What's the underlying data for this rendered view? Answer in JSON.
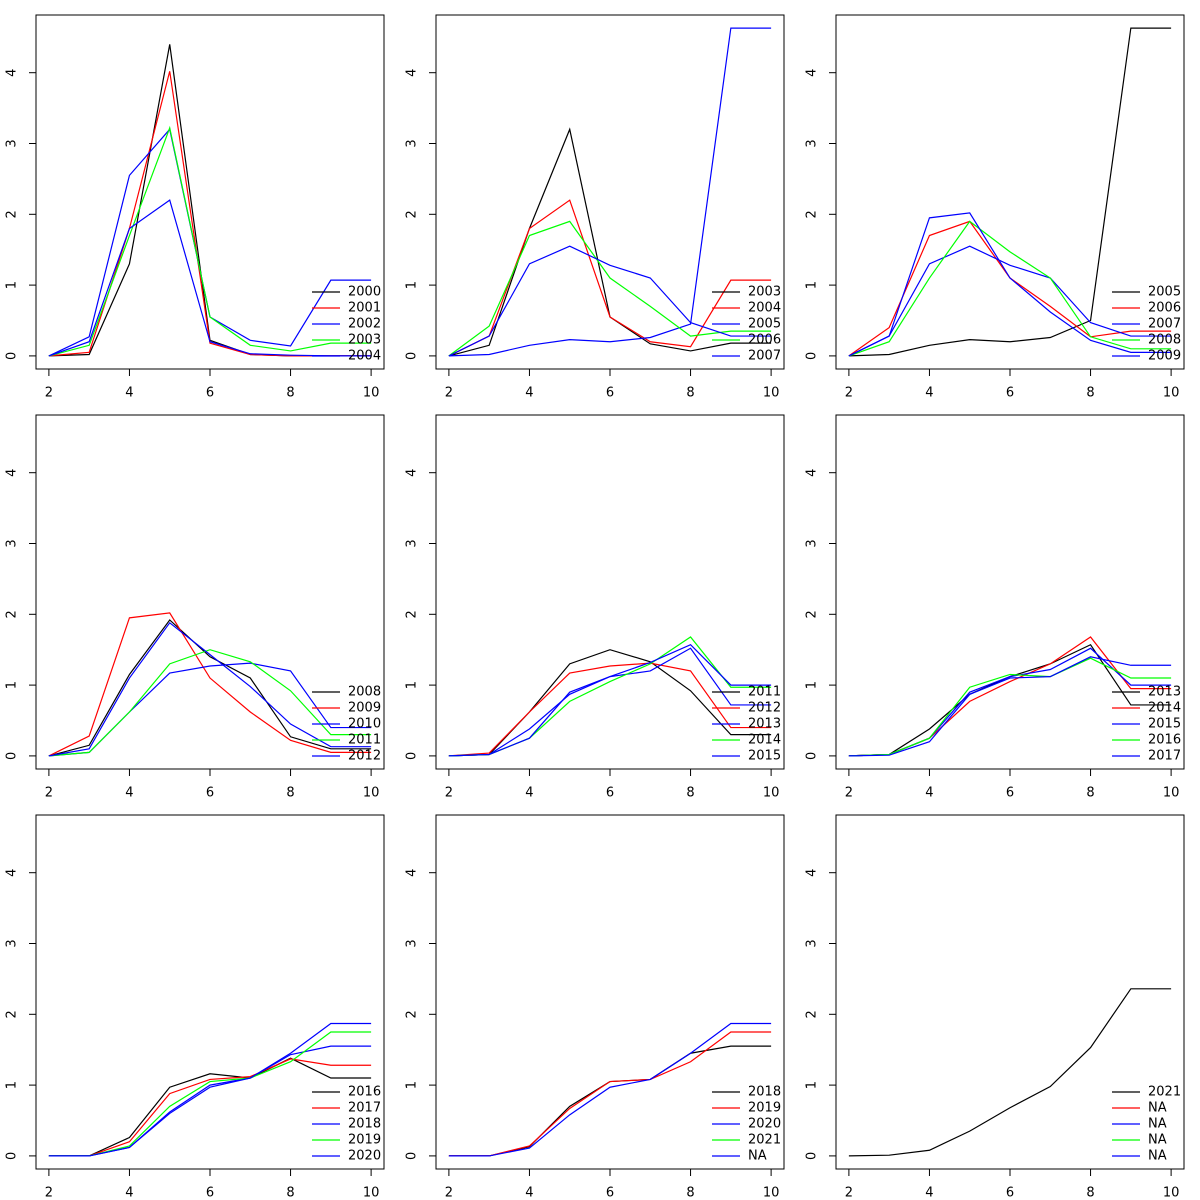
{
  "chart_data": [
    {
      "type": "line",
      "x": [
        2,
        3,
        4,
        5,
        6,
        7,
        8,
        9,
        10
      ],
      "xlim": [
        1.68,
        10.32
      ],
      "xticks": [
        2,
        4,
        6,
        8,
        10
      ],
      "ylim": [
        -0.185,
        4.815
      ],
      "yticks": [
        0,
        1,
        2,
        3,
        4
      ],
      "legend": "bottomright",
      "series": [
        {
          "name": "2000",
          "color": "#000000",
          "values": [
            0,
            0.02,
            1.3,
            4.4,
            0.22,
            0.02,
            0,
            0,
            0
          ]
        },
        {
          "name": "2001",
          "color": "#ff0000",
          "values": [
            0,
            0.05,
            1.8,
            4.02,
            0.18,
            0.02,
            0,
            0,
            0
          ]
        },
        {
          "name": "2002",
          "color": "#0000ff",
          "values": [
            0,
            0.27,
            2.55,
            3.2,
            0.55,
            0.22,
            0.14,
            1.07,
            1.07
          ]
        },
        {
          "name": "2003",
          "color": "#00ff00",
          "values": [
            0,
            0.15,
            1.7,
            3.22,
            0.55,
            0.15,
            0.07,
            0.18,
            0.18
          ]
        },
        {
          "name": "2004",
          "color": "#0000ff",
          "values": [
            0,
            0.2,
            1.8,
            2.2,
            0.2,
            0.03,
            0.01,
            0,
            0
          ]
        }
      ]
    },
    {
      "type": "line",
      "x": [
        2,
        3,
        4,
        5,
        6,
        7,
        8,
        9,
        10
      ],
      "xlim": [
        1.68,
        10.32
      ],
      "xticks": [
        2,
        4,
        6,
        8,
        10
      ],
      "ylim": [
        -0.185,
        4.815
      ],
      "yticks": [
        0,
        1,
        2,
        3,
        4
      ],
      "legend": "bottomright",
      "series": [
        {
          "name": "2003",
          "color": "#000000",
          "values": [
            0,
            0.15,
            1.8,
            3.2,
            0.55,
            0.17,
            0.07,
            0.18,
            0.18
          ]
        },
        {
          "name": "2004",
          "color": "#ff0000",
          "values": [
            0,
            0.28,
            1.8,
            2.2,
            0.55,
            0.2,
            0.13,
            1.07,
            1.07
          ]
        },
        {
          "name": "2005",
          "color": "#0000ff",
          "values": [
            0,
            0.02,
            0.15,
            0.23,
            0.2,
            0.26,
            0.45,
            4.63,
            4.63
          ]
        },
        {
          "name": "2006",
          "color": "#00ff00",
          "values": [
            0,
            0.42,
            1.7,
            1.9,
            1.1,
            0.7,
            0.28,
            0.35,
            0.35
          ]
        },
        {
          "name": "2007",
          "color": "#0000ff",
          "values": [
            0,
            0.28,
            1.3,
            1.55,
            1.28,
            1.1,
            0.47,
            0.28,
            0.28
          ]
        }
      ]
    },
    {
      "type": "line",
      "x": [
        2,
        3,
        4,
        5,
        6,
        7,
        8,
        9,
        10
      ],
      "xlim": [
        1.68,
        10.32
      ],
      "xticks": [
        2,
        4,
        6,
        8,
        10
      ],
      "ylim": [
        -0.185,
        4.815
      ],
      "yticks": [
        0,
        1,
        2,
        3,
        4
      ],
      "legend": "bottomright",
      "series": [
        {
          "name": "2005",
          "color": "#000000",
          "values": [
            0,
            0.02,
            0.15,
            0.23,
            0.2,
            0.26,
            0.5,
            4.63,
            4.63
          ]
        },
        {
          "name": "2006",
          "color": "#ff0000",
          "values": [
            0,
            0.4,
            1.7,
            1.9,
            1.1,
            0.7,
            0.27,
            0.35,
            0.35
          ]
        },
        {
          "name": "2007",
          "color": "#0000ff",
          "values": [
            0,
            0.28,
            1.3,
            1.55,
            1.28,
            1.1,
            0.47,
            0.28,
            0.28
          ]
        },
        {
          "name": "2008",
          "color": "#00ff00",
          "values": [
            0,
            0.2,
            1.1,
            1.9,
            1.47,
            1.1,
            0.27,
            0.1,
            0.1
          ]
        },
        {
          "name": "2009",
          "color": "#0000ff",
          "values": [
            0,
            0.28,
            1.95,
            2.02,
            1.1,
            0.62,
            0.22,
            0.05,
            0.05
          ]
        }
      ]
    },
    {
      "type": "line",
      "x": [
        2,
        3,
        4,
        5,
        6,
        7,
        8,
        9,
        10
      ],
      "xlim": [
        1.68,
        10.32
      ],
      "xticks": [
        2,
        4,
        6,
        8,
        10
      ],
      "ylim": [
        -0.185,
        4.815
      ],
      "yticks": [
        0,
        1,
        2,
        3,
        4
      ],
      "legend": "bottomright",
      "series": [
        {
          "name": "2008",
          "color": "#000000",
          "values": [
            0,
            0.15,
            1.15,
            1.92,
            1.4,
            1.1,
            0.27,
            0.1,
            0.1
          ]
        },
        {
          "name": "2009",
          "color": "#ff0000",
          "values": [
            0,
            0.28,
            1.95,
            2.02,
            1.1,
            0.62,
            0.22,
            0.05,
            0.05
          ]
        },
        {
          "name": "2010",
          "color": "#0000ff",
          "values": [
            0,
            0.05,
            0.62,
            1.17,
            1.27,
            1.31,
            1.2,
            0.4,
            0.4
          ]
        },
        {
          "name": "2011",
          "color": "#00ff00",
          "values": [
            0,
            0.05,
            0.62,
            1.3,
            1.5,
            1.33,
            0.92,
            0.3,
            0.3
          ]
        },
        {
          "name": "2012",
          "color": "#0000ff",
          "values": [
            0,
            0.1,
            1.1,
            1.88,
            1.43,
            0.98,
            0.45,
            0.13,
            0.13
          ]
        }
      ]
    },
    {
      "type": "line",
      "x": [
        2,
        3,
        4,
        5,
        6,
        7,
        8,
        9,
        10
      ],
      "xlim": [
        1.68,
        10.32
      ],
      "xticks": [
        2,
        4,
        6,
        8,
        10
      ],
      "ylim": [
        -0.185,
        4.815
      ],
      "yticks": [
        0,
        1,
        2,
        3,
        4
      ],
      "legend": "bottomright",
      "series": [
        {
          "name": "2011",
          "color": "#000000",
          "values": [
            0,
            0.02,
            0.62,
            1.3,
            1.5,
            1.33,
            0.92,
            0.3,
            0.3
          ]
        },
        {
          "name": "2012",
          "color": "#ff0000",
          "values": [
            0,
            0.04,
            0.62,
            1.17,
            1.27,
            1.31,
            1.2,
            0.4,
            0.4
          ]
        },
        {
          "name": "2013",
          "color": "#0000ff",
          "values": [
            0,
            0.02,
            0.38,
            0.87,
            1.12,
            1.2,
            1.52,
            0.72,
            0.72
          ]
        },
        {
          "name": "2014",
          "color": "#00ff00",
          "values": [
            0,
            0.02,
            0.25,
            0.77,
            1.05,
            1.3,
            1.68,
            0.97,
            0.97
          ]
        },
        {
          "name": "2015",
          "color": "#0000ff",
          "values": [
            0,
            0.02,
            0.25,
            0.9,
            1.12,
            1.32,
            1.57,
            1,
            1
          ]
        }
      ]
    },
    {
      "type": "line",
      "x": [
        2,
        3,
        4,
        5,
        6,
        7,
        8,
        9,
        10
      ],
      "xlim": [
        1.68,
        10.32
      ],
      "xticks": [
        2,
        4,
        6,
        8,
        10
      ],
      "ylim": [
        -0.185,
        4.815
      ],
      "yticks": [
        0,
        1,
        2,
        3,
        4
      ],
      "legend": "bottomright",
      "series": [
        {
          "name": "2013",
          "color": "#000000",
          "values": [
            0,
            0.02,
            0.38,
            0.87,
            1.12,
            1.3,
            1.57,
            0.72,
            0.72
          ]
        },
        {
          "name": "2014",
          "color": "#ff0000",
          "values": [
            0,
            0.02,
            0.25,
            0.77,
            1.05,
            1.3,
            1.68,
            0.95,
            0.95
          ]
        },
        {
          "name": "2015",
          "color": "#0000ff",
          "values": [
            0,
            0.02,
            0.25,
            0.9,
            1.12,
            1.22,
            1.52,
            1,
            1
          ]
        },
        {
          "name": "2016",
          "color": "#00ff00",
          "values": [
            0,
            0.02,
            0.25,
            0.97,
            1.15,
            1.12,
            1.38,
            1.1,
            1.1
          ]
        },
        {
          "name": "2017",
          "color": "#0000ff",
          "values": [
            0,
            0.01,
            0.2,
            0.87,
            1.1,
            1.12,
            1.4,
            1.28,
            1.28
          ]
        }
      ]
    },
    {
      "type": "line",
      "x": [
        2,
        3,
        4,
        5,
        6,
        7,
        8,
        9,
        10
      ],
      "xlim": [
        1.68,
        10.32
      ],
      "xticks": [
        2,
        4,
        6,
        8,
        10
      ],
      "ylim": [
        -0.185,
        4.815
      ],
      "yticks": [
        0,
        1,
        2,
        3,
        4
      ],
      "legend": "bottomright",
      "series": [
        {
          "name": "2016",
          "color": "#000000",
          "values": [
            0,
            0,
            0.26,
            0.97,
            1.16,
            1.1,
            1.38,
            1.1,
            1.1
          ]
        },
        {
          "name": "2017",
          "color": "#ff0000",
          "values": [
            0,
            0,
            0.2,
            0.88,
            1.08,
            1.12,
            1.37,
            1.28,
            1.28
          ]
        },
        {
          "name": "2018",
          "color": "#0000ff",
          "values": [
            0,
            0,
            0.12,
            0.62,
            1,
            1.1,
            1.43,
            1.55,
            1.55
          ]
        },
        {
          "name": "2019",
          "color": "#00ff00",
          "values": [
            0,
            0,
            0.14,
            0.7,
            1.05,
            1.1,
            1.33,
            1.75,
            1.75
          ]
        },
        {
          "name": "2020",
          "color": "#0000ff",
          "values": [
            0,
            0,
            0.12,
            0.6,
            0.97,
            1.1,
            1.45,
            1.87,
            1.87
          ]
        }
      ]
    },
    {
      "type": "line",
      "x": [
        2,
        3,
        4,
        5,
        6,
        7,
        8,
        9,
        10
      ],
      "xlim": [
        1.68,
        10.32
      ],
      "xticks": [
        2,
        4,
        6,
        8,
        10
      ],
      "ylim": [
        -0.185,
        4.815
      ],
      "yticks": [
        0,
        1,
        2,
        3,
        4
      ],
      "legend": "bottomright",
      "series": [
        {
          "name": "2018",
          "color": "#000000",
          "values": [
            0,
            0,
            0.13,
            0.7,
            1.05,
            1.08,
            1.45,
            1.55,
            1.55
          ]
        },
        {
          "name": "2019",
          "color": "#ff0000",
          "values": [
            0,
            0,
            0.14,
            0.67,
            1.05,
            1.08,
            1.33,
            1.75,
            1.75
          ]
        },
        {
          "name": "2020",
          "color": "#0000ff",
          "values": [
            0,
            0,
            0.11,
            0.58,
            0.97,
            1.08,
            1.45,
            1.87,
            1.87
          ]
        },
        {
          "name": "2021",
          "color": "#00ff00",
          "values": [
            null,
            null,
            null,
            null,
            null,
            null,
            null,
            null,
            null
          ]
        },
        {
          "name": "NA",
          "color": "#0000ff",
          "values": [
            null,
            null,
            null,
            null,
            null,
            null,
            null,
            null,
            null
          ]
        }
      ]
    },
    {
      "type": "line",
      "x": [
        2,
        3,
        4,
        5,
        6,
        7,
        8,
        9,
        10
      ],
      "xlim": [
        1.68,
        10.32
      ],
      "xticks": [
        2,
        4,
        6,
        8,
        10
      ],
      "ylim": [
        -0.185,
        4.815
      ],
      "yticks": [
        0,
        1,
        2,
        3,
        4
      ],
      "legend": "bottomright",
      "series": [
        {
          "name": "2021",
          "color": "#000000",
          "values": [
            0,
            0.01,
            0.08,
            0.35,
            0.68,
            0.98,
            1.53,
            2.36,
            2.36
          ]
        },
        {
          "name": "NA",
          "color": "#ff0000",
          "values": [
            null,
            null,
            null,
            null,
            null,
            null,
            null,
            null,
            null
          ]
        },
        {
          "name": "NA",
          "color": "#0000ff",
          "values": [
            null,
            null,
            null,
            null,
            null,
            null,
            null,
            null,
            null
          ]
        },
        {
          "name": "NA",
          "color": "#00ff00",
          "values": [
            null,
            null,
            null,
            null,
            null,
            null,
            null,
            null,
            null
          ]
        },
        {
          "name": "NA",
          "color": "#0000ff",
          "values": [
            null,
            null,
            null,
            null,
            null,
            null,
            null,
            null,
            null
          ]
        }
      ]
    }
  ]
}
